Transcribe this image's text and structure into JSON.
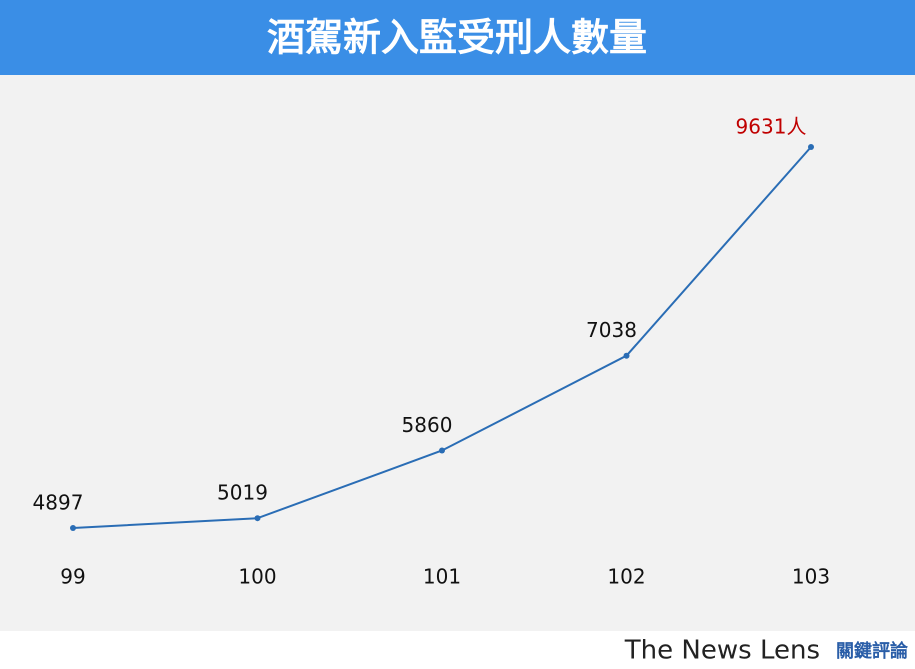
{
  "chart_data": {
    "type": "line",
    "title": "酒駕新入監受刑人數量",
    "categories": [
      "99",
      "100",
      "101",
      "102",
      "103"
    ],
    "values": [
      4897,
      5019,
      5860,
      7038,
      9631
    ],
    "value_labels": [
      "4897",
      "5019",
      "5860",
      "7038",
      "9631人"
    ],
    "value_label_colors": [
      "#111111",
      "#111111",
      "#111111",
      "#111111",
      "#c00000"
    ],
    "color": "#2a6db5",
    "ylim": [
      4000,
      10000
    ],
    "title_background": "#3a8ee6",
    "plot_background": "#f2f2f2"
  },
  "footer": {
    "brand": "The News Lens",
    "brand_zh": "關鍵評論"
  }
}
